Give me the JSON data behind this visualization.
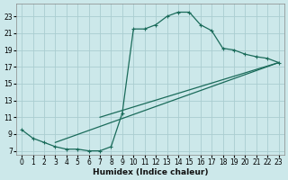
{
  "xlabel": "Humidex (Indice chaleur)",
  "bg_color": "#cce8ea",
  "grid_color": "#aacdd0",
  "line_color": "#1a6b5a",
  "xlim": [
    -0.5,
    23.5
  ],
  "ylim": [
    6.5,
    24.5
  ],
  "xticks": [
    0,
    1,
    2,
    3,
    4,
    5,
    6,
    7,
    8,
    9,
    10,
    11,
    12,
    13,
    14,
    15,
    16,
    17,
    18,
    19,
    20,
    21,
    22,
    23
  ],
  "yticks": [
    7,
    9,
    11,
    13,
    15,
    17,
    19,
    21,
    23
  ],
  "series": [
    {
      "x": [
        0,
        1,
        2,
        3,
        4,
        5,
        6,
        7,
        8,
        9,
        10,
        11,
        12,
        13,
        14,
        15,
        16,
        17,
        18,
        19,
        20,
        21,
        22,
        23
      ],
      "y": [
        9.5,
        8.5,
        8.0,
        7.5,
        7.2,
        7.2,
        7.0,
        7.0,
        7.5,
        11.5,
        21.5,
        21.5,
        22.0,
        23.0,
        23.5,
        23.5,
        22.0,
        21.3,
        19.2,
        19.0,
        18.5,
        18.2,
        18.0,
        17.5
      ],
      "marker": true
    },
    {
      "x": [
        3,
        23
      ],
      "y": [
        8.0,
        17.5
      ],
      "marker": false
    },
    {
      "x": [
        7,
        23
      ],
      "y": [
        11.0,
        17.5
      ],
      "marker": false
    }
  ]
}
